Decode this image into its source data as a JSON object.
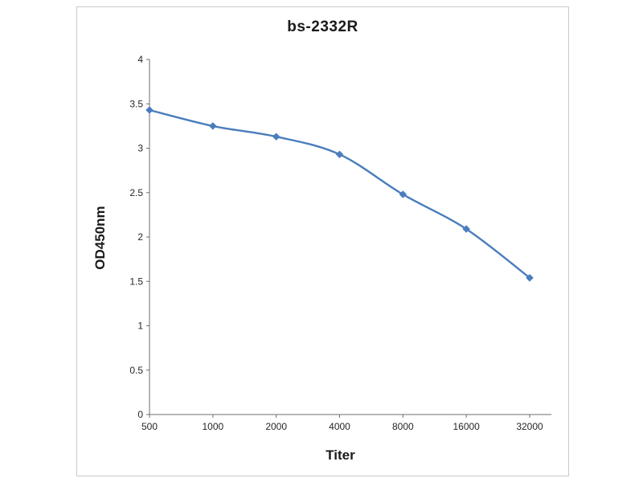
{
  "chart_data": {
    "type": "line",
    "title": "bs-2332R",
    "xlabel": "Titer",
    "ylabel": "OD450nm",
    "categories": [
      "500",
      "1000",
      "2000",
      "4000",
      "8000",
      "16000",
      "32000"
    ],
    "series": [
      {
        "name": "bs-2332R",
        "values": [
          3.43,
          3.25,
          3.13,
          2.93,
          2.48,
          2.09,
          1.54
        ]
      }
    ],
    "ylim": [
      0,
      4
    ],
    "yticks": [
      "4",
      "3.5",
      "3",
      "2.5",
      "2",
      "1.5",
      "1",
      "0.5",
      "0"
    ],
    "ytick_values": [
      4,
      3.5,
      3,
      2.5,
      2,
      1.5,
      1,
      0.5,
      0
    ],
    "line_color": "#4a7dbc",
    "marker": "diamond",
    "axis_color": "#6e6e6e",
    "tick_label_color": "#262626",
    "grid": false,
    "legend": "none"
  }
}
